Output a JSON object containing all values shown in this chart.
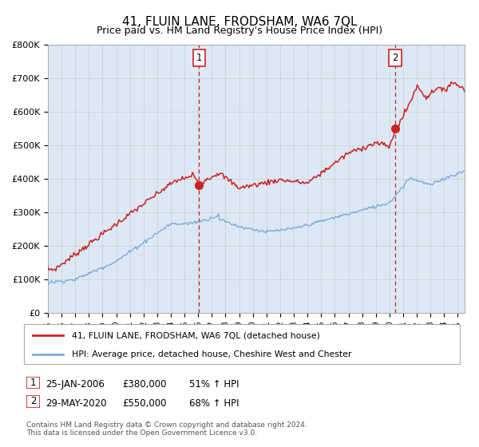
{
  "title": "41, FLUIN LANE, FRODSHAM, WA6 7QL",
  "subtitle": "Price paid vs. HM Land Registry's House Price Index (HPI)",
  "ylabel_ticks": [
    "£0",
    "£100K",
    "£200K",
    "£300K",
    "£400K",
    "£500K",
    "£600K",
    "£700K",
    "£800K"
  ],
  "ylim": [
    0,
    800000
  ],
  "xlim_start": 1995.0,
  "xlim_end": 2025.5,
  "red_line_color": "#cc2222",
  "blue_line_color": "#7aaddc",
  "chart_bg_color": "#dce9f5",
  "marker1_x": 2006.07,
  "marker1_y": 380000,
  "marker2_x": 2020.42,
  "marker2_y": 550000,
  "legend_label_red": "41, FLUIN LANE, FRODSHAM, WA6 7QL (detached house)",
  "legend_label_blue": "HPI: Average price, detached house, Cheshire West and Chester",
  "annotation1_label": "1",
  "annotation2_label": "2",
  "table_row1": [
    "1",
    "25-JAN-2006",
    "£380,000",
    "51% ↑ HPI"
  ],
  "table_row2": [
    "2",
    "29-MAY-2020",
    "£550,000",
    "68% ↑ HPI"
  ],
  "footnote": "Contains HM Land Registry data © Crown copyright and database right 2024.\nThis data is licensed under the Open Government Licence v3.0.",
  "background_color": "#ffffff",
  "grid_color": "#cccccc"
}
